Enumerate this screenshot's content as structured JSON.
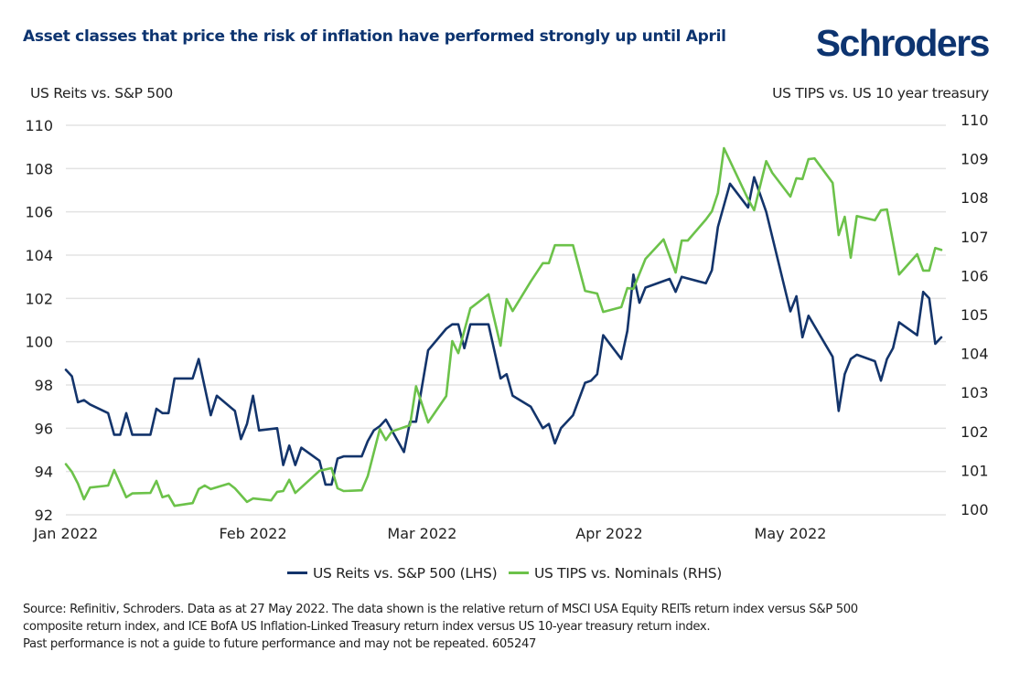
{
  "header": {
    "title": "Asset classes that price the risk of inflation have performed strongly up until April",
    "logo": "Schroders"
  },
  "colors": {
    "brand": "#0d3470",
    "reits": "#13346b",
    "tips": "#6cc24a",
    "grid": "#e3e3e3"
  },
  "chart_data": {
    "type": "line",
    "title": "Asset classes that price the risk of inflation have performed strongly up until April",
    "xlabel": "",
    "ylabel_left": "US Reits vs. S&P 500",
    "ylabel_right": "US TIPS vs. US 10 year treasury",
    "x_unit": "days since 1 Jan 2022",
    "xlim": [
      0,
      146
    ],
    "x_ticks": [
      {
        "day": 0,
        "label": "Jan 2022"
      },
      {
        "day": 31,
        "label": "Feb 2022"
      },
      {
        "day": 59,
        "label": "Mar 2022"
      },
      {
        "day": 90,
        "label": "Apr 2022"
      },
      {
        "day": 120,
        "label": "May 2022"
      }
    ],
    "ylim_left": [
      92,
      110
    ],
    "y_ticks_left": [
      92,
      94,
      96,
      98,
      100,
      102,
      104,
      106,
      108,
      110
    ],
    "ylim_right": [
      100,
      110
    ],
    "y_ticks_right": [
      100,
      101,
      102,
      103,
      104,
      105,
      106,
      107,
      108,
      109,
      110
    ],
    "grid": true,
    "legend_position": "bottom-center",
    "series": [
      {
        "name": "US Reits vs. S&P 500 (LHS)",
        "axis": "left",
        "x": [
          0,
          1,
          2,
          3,
          4,
          7,
          8,
          9,
          10,
          11,
          14,
          15,
          16,
          17,
          18,
          21,
          22,
          23,
          24,
          25,
          28,
          29,
          30,
          31,
          32,
          35,
          36,
          37,
          38,
          39,
          42,
          43,
          44,
          45,
          46,
          49,
          50,
          51,
          52,
          53,
          54,
          56,
          57,
          58,
          60,
          63,
          64,
          65,
          66,
          67,
          70,
          72,
          73,
          74,
          77,
          79,
          80,
          81,
          82,
          84,
          86,
          87,
          88,
          89,
          92,
          93,
          94,
          95,
          96,
          100,
          101,
          102,
          106,
          107,
          108,
          110,
          113,
          114,
          116,
          120,
          121,
          122,
          123,
          127,
          128,
          129,
          130,
          131,
          134,
          135,
          136,
          137,
          138,
          141,
          142,
          143,
          144,
          145
        ],
        "values": [
          98.7,
          98.4,
          97.2,
          97.3,
          97.1,
          96.7,
          95.7,
          95.7,
          96.7,
          95.7,
          95.7,
          96.9,
          96.7,
          96.7,
          98.3,
          98.3,
          99.2,
          97.9,
          96.6,
          97.5,
          96.8,
          95.5,
          96.2,
          97.5,
          95.9,
          96.0,
          94.3,
          95.2,
          94.3,
          95.1,
          94.5,
          93.4,
          93.4,
          94.6,
          94.7,
          94.7,
          95.4,
          95.9,
          96.1,
          96.4,
          95.9,
          94.9,
          96.3,
          96.3,
          99.6,
          100.6,
          100.8,
          100.8,
          99.7,
          100.8,
          100.8,
          98.3,
          98.5,
          97.5,
          97.0,
          96.0,
          96.2,
          95.3,
          96.0,
          96.6,
          98.1,
          98.2,
          98.5,
          100.3,
          99.2,
          100.5,
          103.1,
          101.8,
          102.5,
          102.9,
          102.3,
          103.0,
          102.7,
          103.3,
          105.3,
          107.3,
          106.2,
          107.6,
          106.0,
          101.4,
          102.1,
          100.2,
          101.2,
          99.3,
          96.8,
          98.5,
          99.2,
          99.4,
          99.1,
          98.2,
          99.2,
          99.7,
          100.9,
          100.3,
          102.3,
          102.0,
          99.9,
          100.2
        ]
      },
      {
        "name": "US TIPS vs. Nominals (RHS)",
        "axis": "right",
        "x": [
          0,
          1,
          2,
          3,
          4,
          7,
          8,
          10,
          11,
          14,
          15,
          16,
          17,
          18,
          21,
          22,
          23,
          24,
          27,
          28,
          30,
          31,
          34,
          35,
          36,
          37,
          38,
          42,
          44,
          45,
          46,
          49,
          50,
          52,
          53,
          54,
          57,
          58,
          60,
          63,
          64,
          65,
          67,
          70,
          72,
          73,
          74,
          77,
          79,
          80,
          81,
          84,
          86,
          88,
          89,
          92,
          93,
          94,
          96,
          99,
          101,
          102,
          103,
          106,
          107,
          108,
          109,
          113,
          114,
          116,
          117,
          120,
          121,
          122,
          123,
          124,
          127,
          128,
          129,
          130,
          131,
          134,
          135,
          136,
          138,
          141,
          142,
          143,
          144,
          145
        ],
        "values": [
          101.3,
          101.1,
          100.8,
          100.4,
          100.7,
          100.75,
          101.15,
          100.45,
          100.55,
          100.56,
          100.87,
          100.45,
          100.5,
          100.23,
          100.3,
          100.66,
          100.75,
          100.66,
          100.8,
          100.68,
          100.33,
          100.42,
          100.37,
          100.59,
          100.61,
          100.9,
          100.56,
          101.13,
          101.2,
          100.68,
          100.61,
          100.63,
          100.99,
          102.2,
          101.92,
          102.14,
          102.3,
          103.3,
          102.37,
          103.05,
          104.46,
          104.15,
          105.3,
          105.66,
          104.34,
          105.54,
          105.23,
          105.99,
          106.46,
          106.46,
          106.92,
          106.92,
          105.75,
          105.68,
          105.21,
          105.33,
          105.82,
          105.8,
          106.57,
          107.07,
          106.22,
          107.04,
          107.04,
          107.58,
          107.79,
          108.26,
          109.41,
          108.1,
          107.82,
          109.08,
          108.78,
          108.17,
          108.64,
          108.62,
          109.13,
          109.15,
          108.52,
          107.18,
          107.65,
          106.6,
          107.67,
          107.56,
          107.82,
          107.84,
          106.17,
          106.69,
          106.27,
          106.27,
          106.85,
          106.8
        ]
      }
    ]
  },
  "legend": [
    {
      "label": "US Reits vs. S&P 500 (LHS)",
      "color": "#13346b"
    },
    {
      "label": "US TIPS vs. Nominals (RHS)",
      "color": "#6cc24a"
    }
  ],
  "footer": {
    "lines": [
      "Source: Refinitiv, Schroders. Data as at 27 May 2022. The data shown is the relative return of MSCI USA Equity REITs return index versus S&P 500",
      "composite return index, and ICE BofA US Inflation-Linked Treasury return index versus US 10-year treasury return index.",
      "Past performance is not a guide to future performance and may not be repeated. 605247"
    ]
  }
}
